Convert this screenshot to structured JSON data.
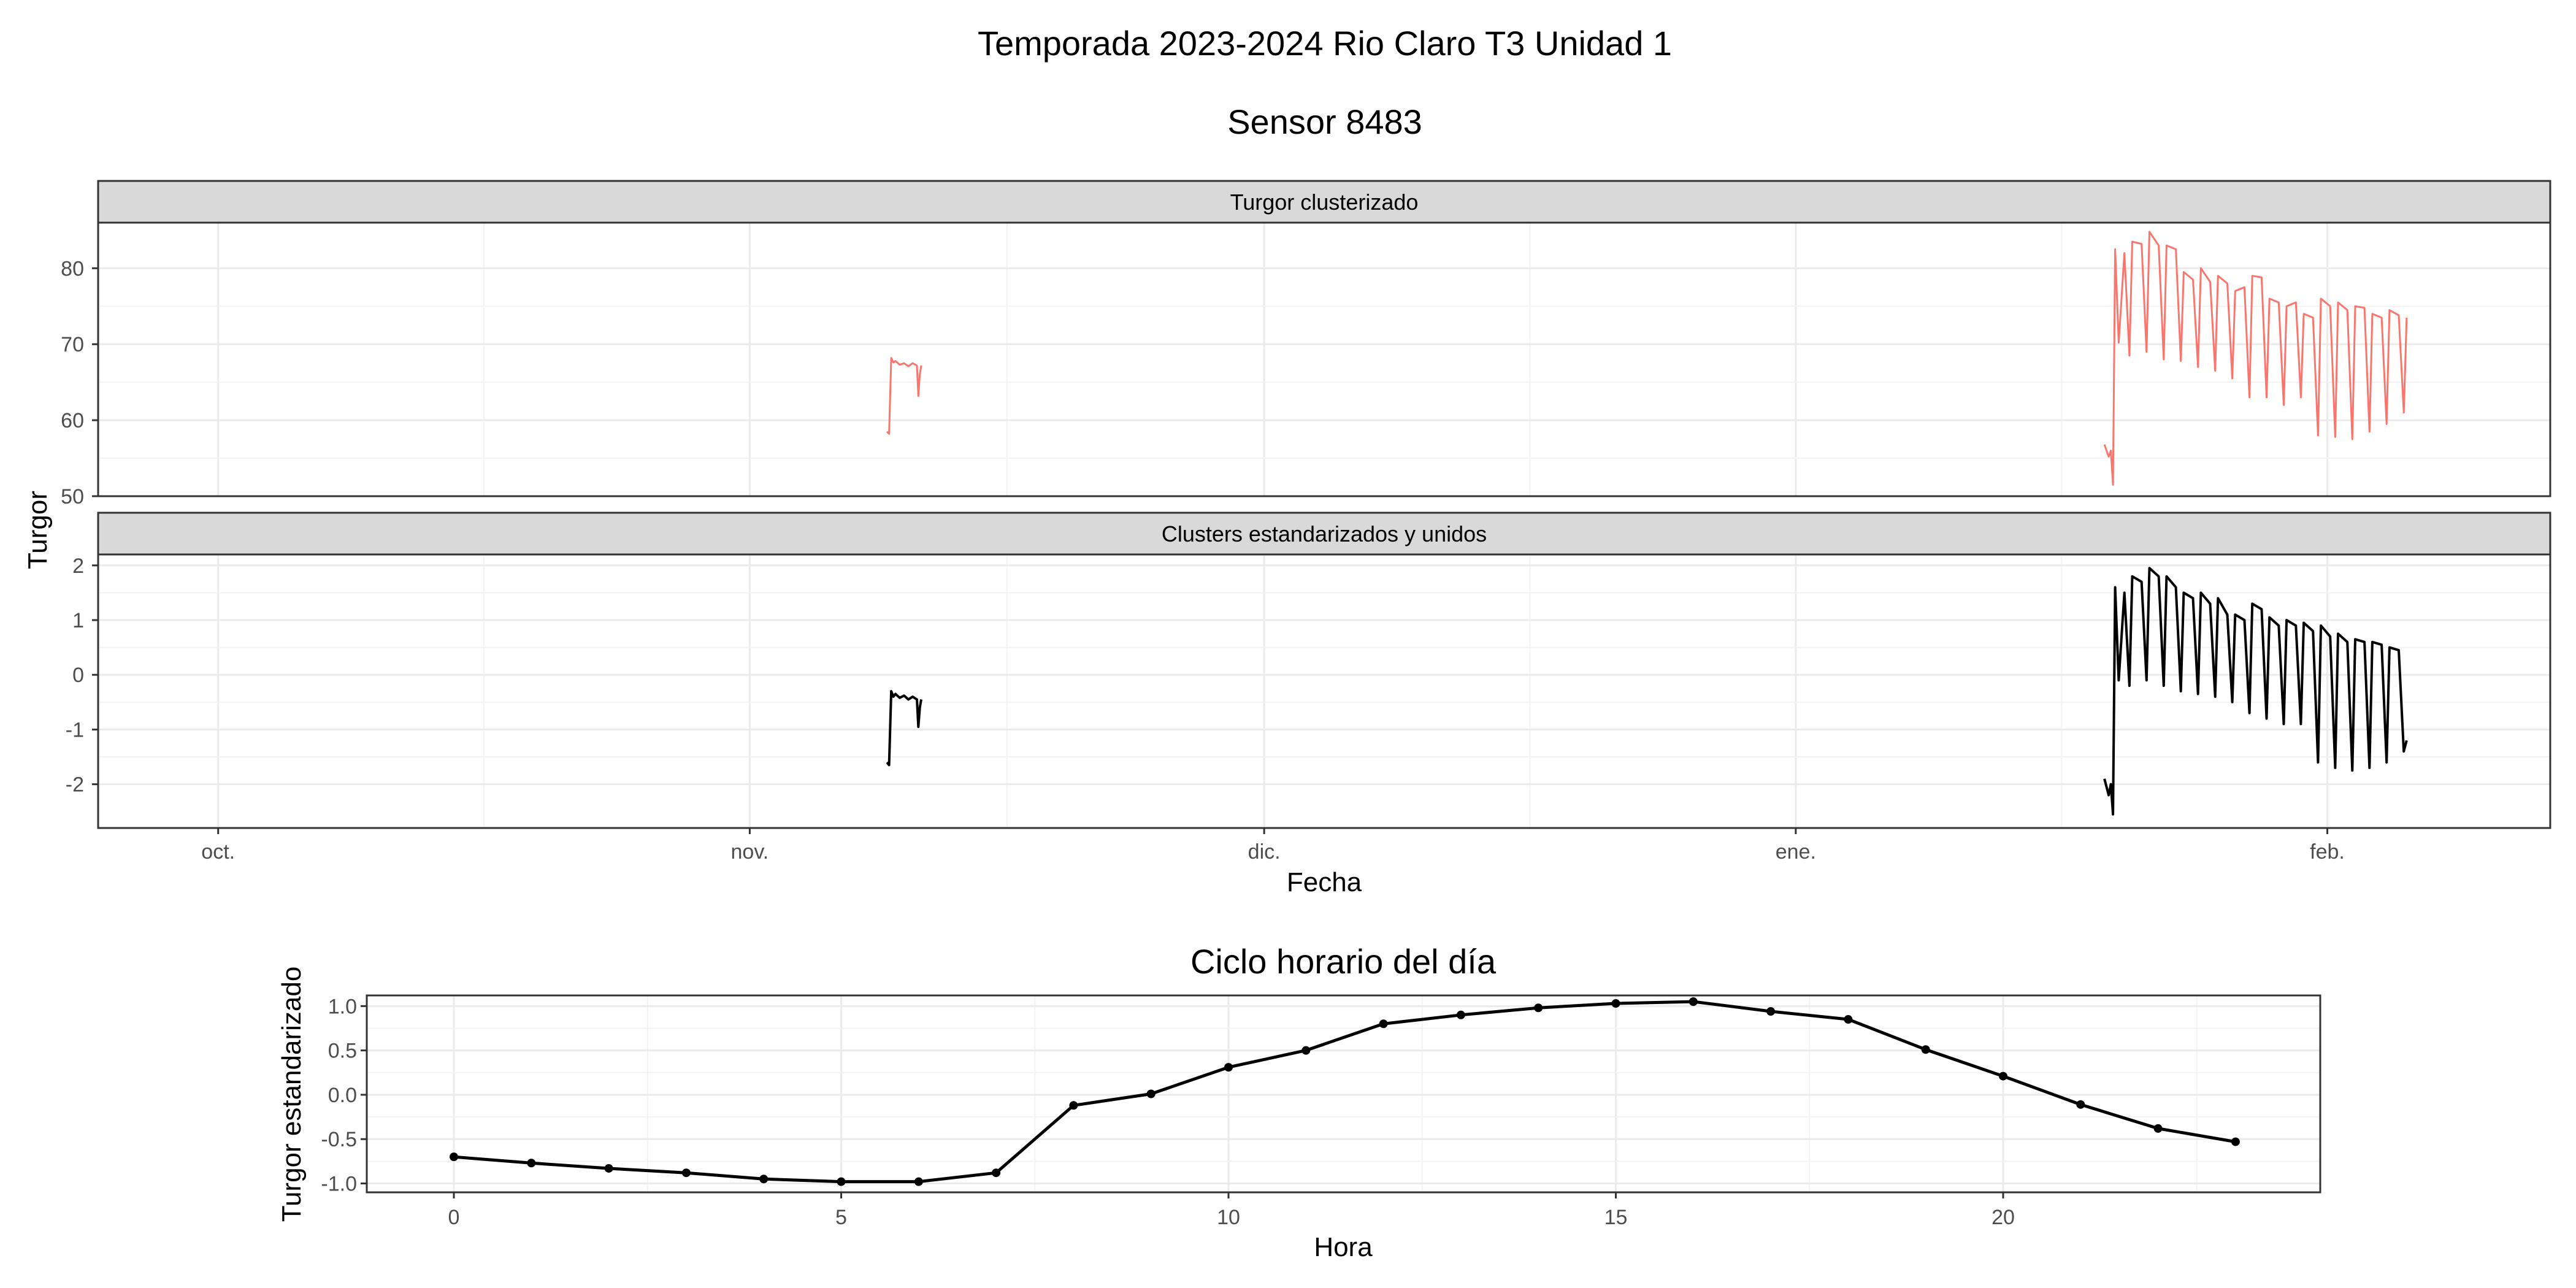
{
  "figure": {
    "title": "Temporada 2023-2024 Rio Claro T3 Unidad 1",
    "subtitle": "Sensor 8483"
  },
  "colors": {
    "clustered_line": "#F8766D",
    "standardized_line": "#000000",
    "strip_bg": "#D9D9D9",
    "grid": "#EBEBEB",
    "border": "#333333"
  },
  "chart_data": [
    {
      "type": "line",
      "panel": "Turgor clusterizado",
      "ylabel": "Turgor",
      "xlabel": "Fecha",
      "x_ticks": [
        "oct.",
        "nov.",
        "dic.",
        "ene.",
        "feb."
      ],
      "x_tick_dates": [
        "2023-10-01",
        "2023-11-01",
        "2023-12-01",
        "2024-01-01",
        "2024-02-01"
      ],
      "xlim": [
        "2023-09-24",
        "2024-02-14"
      ],
      "ylim": [
        50,
        86
      ],
      "y_ticks": [
        50,
        60,
        70,
        80
      ],
      "grid": true,
      "series": [
        {
          "x": [
            "2023-11-09 00:00",
            "2023-11-09 03:00",
            "2023-11-09 06:00",
            "2023-11-09 09:00",
            "2023-11-09 12:00",
            "2023-11-09 18:00",
            "2023-11-10 00:00",
            "2023-11-10 06:00",
            "2023-11-10 12:00",
            "2023-11-10 18:00",
            "2023-11-10 20:00",
            "2023-11-10 22:00",
            "2023-11-11 00:00"
          ],
          "values": [
            58.5,
            58.2,
            68.2,
            67.6,
            67.8,
            67.3,
            67.5,
            67.1,
            67.5,
            67.2,
            63.2,
            66.0,
            67.2
          ]
        },
        {
          "x": [
            "2024-01-19 00:00",
            "2024-01-19 06:00",
            "2024-01-19 09:00",
            "2024-01-19 12:00",
            "2024-01-19 15:00",
            "2024-01-19 20:00",
            "2024-01-20 04:00",
            "2024-01-20 11:00",
            "2024-01-20 15:00",
            "2024-01-21 04:00",
            "2024-01-21 11:00",
            "2024-01-21 15:00",
            "2024-01-22 04:00",
            "2024-01-22 11:00",
            "2024-01-22 15:00",
            "2024-01-23 04:00",
            "2024-01-23 11:00",
            "2024-01-23 15:00",
            "2024-01-24 04:00",
            "2024-01-24 11:00",
            "2024-01-24 15:00",
            "2024-01-25 04:00",
            "2024-01-25 11:00",
            "2024-01-25 15:00",
            "2024-01-26 04:00",
            "2024-01-26 11:00",
            "2024-01-26 15:00",
            "2024-01-27 04:00",
            "2024-01-27 11:00",
            "2024-01-27 15:00",
            "2024-01-28 04:00",
            "2024-01-28 11:00",
            "2024-01-28 15:00",
            "2024-01-29 04:00",
            "2024-01-29 11:00",
            "2024-01-29 15:00",
            "2024-01-30 04:00",
            "2024-01-30 11:00",
            "2024-01-30 15:00",
            "2024-01-31 04:00",
            "2024-01-31 11:00",
            "2024-01-31 15:00",
            "2024-02-01 04:00",
            "2024-02-01 11:00",
            "2024-02-01 15:00",
            "2024-02-02 04:00",
            "2024-02-02 11:00",
            "2024-02-02 15:00",
            "2024-02-03 04:00",
            "2024-02-03 11:00",
            "2024-02-03 15:00",
            "2024-02-04 04:00",
            "2024-02-04 11:00",
            "2024-02-04 15:00",
            "2024-02-05 04:00",
            "2024-02-05 11:00",
            "2024-02-05 15:00"
          ],
          "values": [
            56.8,
            55.2,
            56.0,
            51.5,
            82.5,
            70.2,
            82.0,
            68.5,
            83.5,
            83.2,
            69.0,
            84.8,
            83.0,
            68.0,
            83.0,
            82.5,
            67.8,
            79.5,
            78.5,
            67.0,
            80.0,
            78.2,
            66.5,
            79.0,
            78.0,
            65.5,
            77.0,
            77.5,
            63.0,
            79.0,
            78.8,
            63.0,
            76.0,
            75.5,
            62.0,
            75.0,
            75.5,
            63.0,
            74.0,
            73.5,
            58.0,
            76.0,
            75.0,
            57.8,
            75.5,
            74.5,
            57.5,
            75.0,
            74.8,
            58.5,
            74.0,
            73.5,
            59.5,
            74.5,
            73.8,
            61.0,
            73.5
          ]
        }
      ]
    },
    {
      "type": "line",
      "panel": "Clusters estandarizados y unidos",
      "ylabel": "Turgor",
      "xlabel": "Fecha",
      "x_ticks": [
        "oct.",
        "nov.",
        "dic.",
        "ene.",
        "feb."
      ],
      "x_tick_dates": [
        "2023-10-01",
        "2023-11-01",
        "2023-12-01",
        "2024-01-01",
        "2024-02-01"
      ],
      "xlim": [
        "2023-09-24",
        "2024-02-14"
      ],
      "ylim": [
        -2.8,
        2.2
      ],
      "y_ticks": [
        -2,
        -1,
        0,
        1,
        2
      ],
      "grid": true,
      "series": [
        {
          "x": [
            "2023-11-09 00:00",
            "2023-11-09 03:00",
            "2023-11-09 06:00",
            "2023-11-09 09:00",
            "2023-11-09 12:00",
            "2023-11-09 18:00",
            "2023-11-10 00:00",
            "2023-11-10 06:00",
            "2023-11-10 12:00",
            "2023-11-10 18:00",
            "2023-11-10 20:00",
            "2023-11-10 22:00",
            "2023-11-11 00:00"
          ],
          "values": [
            -1.6,
            -1.65,
            -0.3,
            -0.4,
            -0.35,
            -0.42,
            -0.38,
            -0.45,
            -0.4,
            -0.45,
            -0.95,
            -0.6,
            -0.45
          ]
        },
        {
          "x": [
            "2024-01-19 00:00",
            "2024-01-19 06:00",
            "2024-01-19 09:00",
            "2024-01-19 12:00",
            "2024-01-19 15:00",
            "2024-01-19 20:00",
            "2024-01-20 04:00",
            "2024-01-20 11:00",
            "2024-01-20 15:00",
            "2024-01-21 04:00",
            "2024-01-21 11:00",
            "2024-01-21 15:00",
            "2024-01-22 04:00",
            "2024-01-22 11:00",
            "2024-01-22 15:00",
            "2024-01-23 04:00",
            "2024-01-23 11:00",
            "2024-01-23 15:00",
            "2024-01-24 04:00",
            "2024-01-24 11:00",
            "2024-01-24 15:00",
            "2024-01-25 04:00",
            "2024-01-25 11:00",
            "2024-01-25 15:00",
            "2024-01-26 04:00",
            "2024-01-26 11:00",
            "2024-01-26 15:00",
            "2024-01-27 04:00",
            "2024-01-27 11:00",
            "2024-01-27 15:00",
            "2024-01-28 04:00",
            "2024-01-28 11:00",
            "2024-01-28 15:00",
            "2024-01-29 04:00",
            "2024-01-29 11:00",
            "2024-01-29 15:00",
            "2024-01-30 04:00",
            "2024-01-30 11:00",
            "2024-01-30 15:00",
            "2024-01-31 04:00",
            "2024-01-31 11:00",
            "2024-01-31 15:00",
            "2024-02-01 04:00",
            "2024-02-01 11:00",
            "2024-02-01 15:00",
            "2024-02-02 04:00",
            "2024-02-02 11:00",
            "2024-02-02 15:00",
            "2024-02-03 04:00",
            "2024-02-03 11:00",
            "2024-02-03 15:00",
            "2024-02-04 04:00",
            "2024-02-04 11:00",
            "2024-02-04 15:00",
            "2024-02-05 04:00",
            "2024-02-05 11:00",
            "2024-02-05 15:00"
          ],
          "values": [
            -1.9,
            -2.2,
            -2.0,
            -2.55,
            1.6,
            -0.1,
            1.5,
            -0.2,
            1.8,
            1.7,
            -0.1,
            1.95,
            1.8,
            -0.2,
            1.8,
            1.6,
            -0.3,
            1.5,
            1.4,
            -0.35,
            1.5,
            1.3,
            -0.4,
            1.4,
            1.1,
            -0.5,
            1.1,
            1.0,
            -0.7,
            1.3,
            1.2,
            -0.8,
            1.05,
            0.9,
            -0.9,
            1.0,
            0.9,
            -0.9,
            0.95,
            0.8,
            -1.6,
            0.9,
            0.7,
            -1.7,
            0.75,
            0.6,
            -1.75,
            0.65,
            0.6,
            -1.7,
            0.6,
            0.55,
            -1.6,
            0.5,
            0.45,
            -1.4,
            -1.2
          ]
        }
      ]
    },
    {
      "type": "line",
      "title": "Ciclo horario del día",
      "xlabel": "Hora",
      "ylabel": "Turgor estandarizado",
      "xlim": [
        -2,
        48
      ],
      "ylim": [
        -1.1,
        1.12
      ],
      "x_ticks": [
        0,
        5,
        10,
        15,
        20
      ],
      "y_ticks": [
        -1.0,
        -0.5,
        0.0,
        0.5,
        1.0
      ],
      "grid": true,
      "series": [
        {
          "x": [
            0,
            1,
            2,
            3,
            4,
            5,
            6,
            7,
            8,
            9,
            10,
            11,
            12,
            13,
            14,
            15,
            16,
            17,
            18,
            19,
            20,
            21,
            22,
            23
          ],
          "values": [
            -0.7,
            -0.77,
            -0.83,
            -0.88,
            -0.95,
            -0.98,
            -0.98,
            -0.88,
            -0.12,
            0.01,
            0.31,
            0.5,
            0.8,
            0.9,
            0.98,
            1.03,
            1.05,
            0.94,
            0.85,
            0.51,
            0.21,
            -0.11,
            -0.38,
            -0.53
          ]
        }
      ]
    }
  ]
}
